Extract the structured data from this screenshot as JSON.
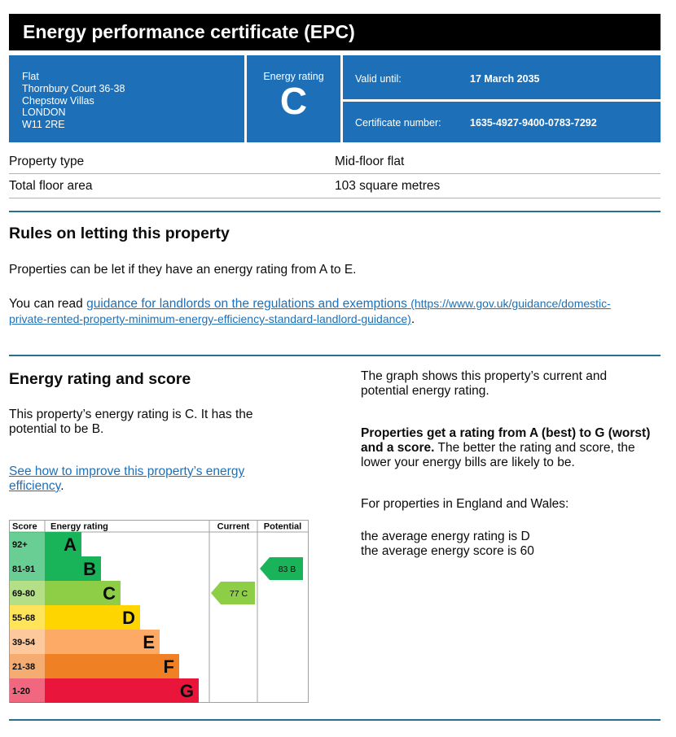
{
  "header": {
    "title": "Energy performance certificate (EPC)"
  },
  "address": {
    "lines": [
      "Flat",
      "Thornbury Court 36-38",
      "Chepstow Villas",
      "LONDON",
      "W11 2RE"
    ]
  },
  "rating_box": {
    "label": "Energy rating",
    "value": "C"
  },
  "valid": {
    "label": "Valid until:",
    "value": "17 March 2035"
  },
  "certificate": {
    "label": "Certificate number:",
    "value": "1635-4927-9400-0783-7292"
  },
  "property": {
    "type_label": "Property type",
    "type_value": "Mid-floor flat",
    "area_label": "Total floor area",
    "area_value": "103 square metres"
  },
  "letting": {
    "heading": "Rules on letting this property",
    "para1": "Properties can be let if they have an energy rating from A to E.",
    "para2_prefix": "You can read ",
    "link_text": "guidance for landlords on the regulations and exemptions",
    "link_url_line1": "(https://www.gov.uk/guidance/domestic-",
    "link_url_line2": "private-rented-property-minimum-energy-efficiency-standard-landlord-guidance)",
    "para2_suffix": "."
  },
  "energy": {
    "heading": "Energy rating and score",
    "para1_line1": "This property’s energy rating is C. It has the",
    "para1_line2": "potential to be B.",
    "link_line1": "See how to improve this property’s energy",
    "link_line2": "efficiency",
    "link_suffix": ".",
    "right_p1_line1": "The graph shows this property’s current and",
    "right_p1_line2": "potential energy rating.",
    "right_p2_bold_line1": "Properties get a rating from A (best) to G (worst)",
    "right_p2_bold_line2": "and a score.",
    "right_p2_rest_line2": " The better the rating and score, the",
    "right_p2_line3": "lower your energy bills are likely to be.",
    "right_p3": "For properties in England and Wales:",
    "right_p4_line1": "the average energy rating is D",
    "right_p4_line2": "the average energy score is 60"
  },
  "chart_data": {
    "type": "table",
    "headers": {
      "score": "Score",
      "rating": "Energy rating",
      "current": "Current",
      "potential": "Potential"
    },
    "bands": [
      {
        "range": "92+",
        "letter": "A",
        "color": "#19b459"
      },
      {
        "range": "81-91",
        "letter": "B",
        "color": "#19b459"
      },
      {
        "range": "69-80",
        "letter": "C",
        "color": "#8dce46"
      },
      {
        "range": "55-68",
        "letter": "D",
        "color": "#ffd500"
      },
      {
        "range": "39-54",
        "letter": "E",
        "color": "#fcaa65"
      },
      {
        "range": "21-38",
        "letter": "F",
        "color": "#ef8023"
      },
      {
        "range": "1-20",
        "letter": "G",
        "color": "#e9153b"
      }
    ],
    "current": {
      "score": 77,
      "letter": "C",
      "label": "77  C",
      "color": "#8dce46"
    },
    "potential": {
      "score": 83,
      "letter": "B",
      "label": "83  B",
      "color": "#19b459"
    }
  }
}
